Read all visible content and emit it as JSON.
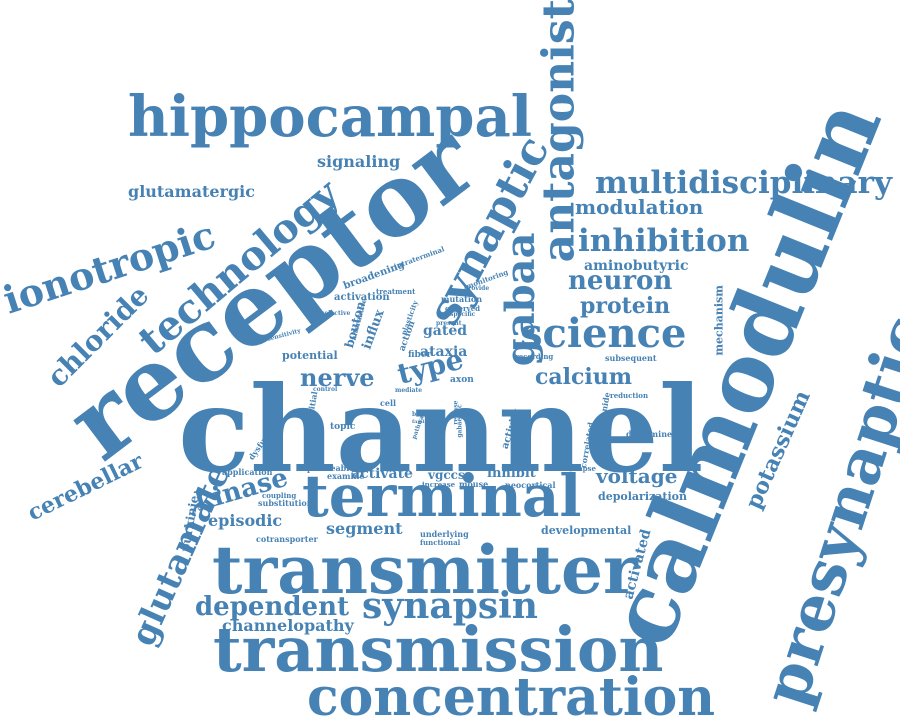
{
  "color": "#4682b4",
  "words": [
    "channel",
    "receptor",
    "calmodulin",
    "presynaptic",
    "terminal",
    "transmitter",
    "transmission",
    "concentration",
    "hippocampal",
    "antagonist",
    "synaptic",
    "gabaa",
    "science",
    "technology",
    "ionotropic",
    "multidisciplinary",
    "inhibition",
    "glutamate",
    "synapsin",
    "chloride",
    "cerebellar",
    "dependent",
    "modulation",
    "neuron",
    "protein",
    "calcium",
    "kinase",
    "potassium",
    "nerve",
    "type",
    "voltage",
    "signaling",
    "glutamatergic",
    "aminobutyric",
    "episodic",
    "segment",
    "channelopathy",
    "activated",
    "mechanism",
    "activate",
    "inhibit",
    "purkinje",
    "depolarization",
    "developmental",
    "vgccs",
    "ataxia",
    "gated",
    "potential",
    "activation",
    "axon",
    "influx",
    "bouton",
    "broadening",
    "mutation",
    "fiber",
    "activity",
    "cell",
    "topic",
    "application",
    "permeable",
    "examine",
    "coupling",
    "substitution",
    "cotransporter",
    "underlying",
    "functional",
    "neocortical",
    "synapse",
    "bumetanide",
    "determined",
    "reduction",
    "subsequent",
    "correlated",
    "recording",
    "initial",
    "dysfunction",
    "control",
    "sensitivity",
    "selective",
    "treatment",
    "intraterminal",
    "monitoring",
    "observed",
    "provide",
    "specific",
    "present",
    "alternative",
    "plasticity",
    "increase",
    "mouse",
    "action",
    "mediate",
    "pathway",
    "basket",
    "family",
    "gabaergic",
    "release",
    "block"
  ]
}
